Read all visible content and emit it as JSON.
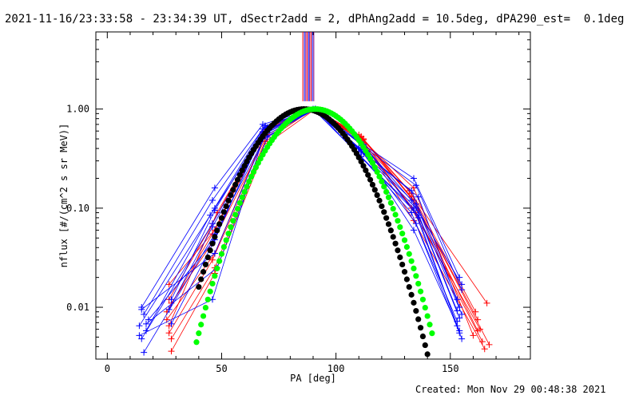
{
  "plot": {
    "title": "2021-11-16/23:33:58 - 23:34:39 UT, dSectr2add = 2, dPhAng2add = 10.5deg, dPA290_est=  0.1deg",
    "created": "Created: Mon Nov 29 00:48:38 2021"
  },
  "chart_data": {
    "type": "line",
    "title": "2021-11-16/23:33:58 - 23:34:39 UT, dSectr2add = 2, dPhAng2add = 10.5deg, dPA290_est=  0.1deg",
    "xlabel": "PA [deg]",
    "ylabel": "nflux [#/(cm^2 s sr MeV)]",
    "xlim": [
      -5,
      185
    ],
    "ylim": [
      0.003,
      6.0
    ],
    "yscale": "log",
    "x_ticks": [
      0,
      50,
      100,
      150
    ],
    "x_tick_labels": [
      "0",
      "50",
      "100",
      "150"
    ],
    "y_ticks": [
      0.01,
      0.1,
      1.0
    ],
    "y_tick_labels": [
      "0.01",
      "0.10",
      "1.00"
    ],
    "grid": false,
    "colors": {
      "red": "#ff0000",
      "blue": "#0000ff",
      "black": "#000000",
      "green": "#00ff00",
      "purple": "#7f007f"
    },
    "vertical_lines": {
      "x": [
        85.5,
        86.2,
        86.8,
        87.4,
        88.0,
        88.5,
        89.1,
        89.7,
        90.3
      ],
      "colors": [
        "#ff0000",
        "#0000ff",
        "#7f007f",
        "#ff0000",
        "#0000ff",
        "#7f007f",
        "#ff0000",
        "#0000ff",
        "#7f007f"
      ]
    },
    "series": [
      {
        "color": "#ff0000",
        "marker": "+",
        "x": [
          27,
          47,
          69,
          91,
          111,
          133,
          161
        ],
        "y": [
          0.017,
          0.06,
          0.6,
          1.0,
          0.52,
          0.14,
          0.009
        ]
      },
      {
        "color": "#ff0000",
        "marker": "+",
        "x": [
          28,
          46,
          70,
          90,
          112,
          134,
          162
        ],
        "y": [
          0.011,
          0.045,
          0.55,
          1.0,
          0.5,
          0.12,
          0.0075
        ]
      },
      {
        "color": "#ff0000",
        "marker": "+",
        "x": [
          26,
          47,
          68,
          91,
          110,
          133,
          163
        ],
        "y": [
          0.0075,
          0.035,
          0.5,
          1.0,
          0.55,
          0.1,
          0.006
        ]
      },
      {
        "color": "#ff0000",
        "marker": "+",
        "x": [
          27,
          46,
          69,
          90,
          111,
          135,
          164
        ],
        "y": [
          0.0055,
          0.03,
          0.47,
          1.0,
          0.48,
          0.09,
          0.0045
        ]
      },
      {
        "color": "#ff0000",
        "marker": "+",
        "x": [
          28,
          47,
          70,
          91,
          112,
          134,
          165
        ],
        "y": [
          0.0036,
          0.022,
          0.45,
          1.0,
          0.46,
          0.075,
          0.0038
        ]
      },
      {
        "color": "#ff0000",
        "marker": "+",
        "x": [
          27,
          48,
          69,
          90,
          111,
          132,
          166
        ],
        "y": [
          0.0065,
          0.09,
          0.62,
          1.0,
          0.53,
          0.15,
          0.011
        ]
      },
      {
        "color": "#ff0000",
        "marker": "+",
        "x": [
          26,
          46,
          68,
          91,
          110,
          133,
          162
        ],
        "y": [
          0.009,
          0.055,
          0.58,
          1.0,
          0.51,
          0.13,
          0.0058
        ]
      },
      {
        "color": "#ff0000",
        "marker": "+",
        "x": [
          28,
          47,
          70,
          90,
          112,
          135,
          167
        ],
        "y": [
          0.0048,
          0.025,
          0.52,
          1.0,
          0.49,
          0.11,
          0.0042
        ]
      },
      {
        "color": "#ff0000",
        "marker": "+",
        "x": [
          27,
          46,
          69,
          91,
          111,
          134,
          160
        ],
        "y": [
          0.012,
          0.07,
          0.66,
          1.0,
          0.5,
          0.16,
          0.0052
        ]
      },
      {
        "color": "#0000ff",
        "marker": "+",
        "x": [
          15,
          47,
          68,
          90,
          111,
          134,
          154
        ],
        "y": [
          0.01,
          0.16,
          0.7,
          1.0,
          0.45,
          0.2,
          0.02
        ]
      },
      {
        "color": "#0000ff",
        "marker": "+",
        "x": [
          16,
          46,
          69,
          91,
          112,
          135,
          155
        ],
        "y": [
          0.0085,
          0.12,
          0.68,
          1.0,
          0.42,
          0.17,
          0.015
        ]
      },
      {
        "color": "#0000ff",
        "marker": "+",
        "x": [
          14,
          47,
          70,
          90,
          110,
          133,
          153
        ],
        "y": [
          0.0065,
          0.1,
          0.65,
          1.0,
          0.4,
          0.15,
          0.012
        ]
      },
      {
        "color": "#0000ff",
        "marker": "+",
        "x": [
          17,
          45,
          68,
          91,
          111,
          136,
          154
        ],
        "y": [
          0.0058,
          0.085,
          0.63,
          1.0,
          0.38,
          0.13,
          0.01
        ]
      },
      {
        "color": "#0000ff",
        "marker": "+",
        "x": [
          15,
          46,
          69,
          90,
          112,
          135,
          155
        ],
        "y": [
          0.0048,
          0.07,
          0.6,
          1.0,
          0.36,
          0.11,
          0.0085
        ]
      },
      {
        "color": "#0000ff",
        "marker": "+",
        "x": [
          16,
          47,
          70,
          91,
          110,
          134,
          153
        ],
        "y": [
          0.0035,
          0.055,
          0.58,
          1.0,
          0.34,
          0.1,
          0.0065
        ]
      },
      {
        "color": "#0000ff",
        "marker": "+",
        "x": [
          18,
          46,
          68,
          90,
          111,
          133,
          154
        ],
        "y": [
          0.0075,
          0.045,
          0.56,
          1.0,
          0.33,
          0.09,
          0.0055
        ]
      },
      {
        "color": "#0000ff",
        "marker": "+",
        "x": [
          15,
          47,
          69,
          91,
          112,
          136,
          155
        ],
        "y": [
          0.0095,
          0.035,
          0.54,
          1.0,
          0.44,
          0.08,
          0.0048
        ]
      },
      {
        "color": "#0000ff",
        "marker": "+",
        "x": [
          17,
          48,
          70,
          90,
          110,
          135,
          153
        ],
        "y": [
          0.0068,
          0.025,
          0.52,
          1.0,
          0.41,
          0.07,
          0.0072
        ]
      },
      {
        "color": "#0000ff",
        "marker": "+",
        "x": [
          14,
          46,
          68,
          91,
          111,
          134,
          154
        ],
        "y": [
          0.0052,
          0.012,
          0.5,
          1.0,
          0.39,
          0.06,
          0.0058
        ]
      },
      {
        "color": "#0000ff",
        "marker": "+",
        "x": [
          28,
          47,
          69,
          90,
          112,
          133,
          155
        ],
        "y": [
          0.012,
          0.095,
          0.66,
          1.0,
          0.43,
          0.12,
          0.017
        ]
      },
      {
        "color": "#0000ff",
        "marker": "+",
        "x": [
          27,
          46,
          70,
          91,
          111,
          135,
          153
        ],
        "y": [
          0.0095,
          0.065,
          0.61,
          1.0,
          0.37,
          0.1,
          0.0092
        ]
      },
      {
        "color": "#0000ff",
        "marker": "+",
        "x": [
          28,
          47,
          68,
          90,
          110,
          136,
          154
        ],
        "y": [
          0.0068,
          0.048,
          0.59,
          1.0,
          0.35,
          0.085,
          0.0078
        ]
      },
      {
        "color": "#000000",
        "marker": "dot",
        "mu": 86.0,
        "sigma": 16.0,
        "xrange": [
          40,
          150
        ]
      },
      {
        "color": "#00ff00",
        "marker": "dot",
        "mu": 91.0,
        "sigma": 15.8,
        "xrange": [
          39,
          142
        ]
      }
    ]
  }
}
